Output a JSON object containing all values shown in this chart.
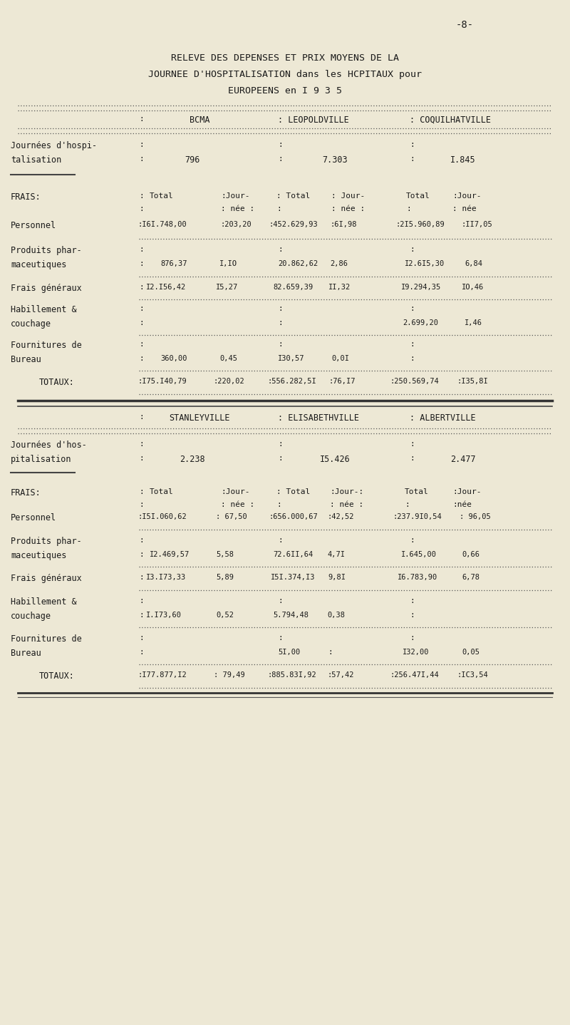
{
  "page_num": "-8-",
  "title_line1": "RELEVE DES DEPENSES ET PRIX MOYENS DE LA",
  "title_line2": "JOURNEE D'HOSPITALISATION dans les HCPITAUX pour",
  "title_line3": "EUROPEENS en I 9 3 5",
  "bg_color": "#ede8d5",
  "text_color": "#1a1a1a",
  "section1": {
    "cities": [
      "BCMA",
      "LEOPOLDVILLE",
      "COQUILHATVILLE"
    ],
    "journees": [
      "796",
      "7.303",
      "I.845"
    ],
    "rows": [
      {
        "label1": "Journées d'hospi-",
        "label2": "talisation",
        "v1": "796",
        "v2": "7.303",
        "v3": "I.845"
      }
    ],
    "data_rows": [
      {
        "label1": "Personnel",
        "label2": "",
        "v": [
          ":I6I.748,00",
          ":203,20",
          ":452.629,93",
          ":6I,98",
          ":2I5.960,89",
          ":II7,05"
        ]
      },
      {
        "label1": "Produits phar-",
        "label2": "maceutiques",
        "v": [
          "876,37",
          "I,IO",
          "20.862,62",
          "2,86",
          "I2.6I5,30",
          "6,84"
        ]
      },
      {
        "label1": "Frais généraux",
        "label2": "",
        "v": [
          "I2.I56,42",
          "I5,27",
          "82.659,39",
          "II,32",
          "I9.294,35",
          "IO,46"
        ]
      },
      {
        "label1": "Habillement &",
        "label2": "couchage",
        "v": [
          "",
          "",
          "",
          "",
          "2.699,20",
          "I,46"
        ]
      },
      {
        "label1": "Fournitures de",
        "label2": "Bureau",
        "v": [
          "360,00",
          "0,45",
          "I30,57",
          "0,0I",
          "",
          ""
        ]
      }
    ],
    "totaux": [
      ":I75.I40,79",
      ":220,02",
      ":556.282,5I",
      ":76,I7",
      ":250.569,74",
      ":I35,8I"
    ]
  },
  "section2": {
    "cities": [
      "STANLEYVILLE",
      "ELISABETHVILLE",
      "ALBERTVILLE"
    ],
    "journees": [
      "2.238",
      "I5.426",
      "2.477"
    ],
    "data_rows": [
      {
        "label1": "Personnel",
        "label2": "",
        "v": [
          ":I5I.060,62",
          ": 67,50",
          ":656.000,67",
          ":42,52",
          ":237.9I0,54",
          ": 96,05"
        ]
      },
      {
        "label1": "Produits phar-",
        "label2": "maceutiques",
        "v": [
          "I2.469,57",
          "5,58",
          "72.6II,64",
          "4,7I",
          "I.645,00",
          "0,66"
        ]
      },
      {
        "label1": "Frais généraux",
        "label2": "",
        "v": [
          "I3.I73,33",
          "5,89",
          "I5I.374,I3",
          "9,8I",
          "I6.783,90",
          "6,78"
        ]
      },
      {
        "label1": "Habillement &",
        "label2": "couchage",
        "v": [
          "I.I73,60",
          "0,52",
          "5.794,48",
          "0,38",
          "",
          ""
        ]
      },
      {
        "label1": "Fournitures de",
        "label2": "Bureau",
        "v": [
          "",
          "",
          "5I,00",
          "",
          "I32,00",
          "0,05"
        ]
      }
    ],
    "totaux": [
      ":I77.877,I2",
      ": 79,49",
      ":885.83I,92",
      ":57,42",
      ":256.47I,44",
      ":IC3,54"
    ]
  }
}
